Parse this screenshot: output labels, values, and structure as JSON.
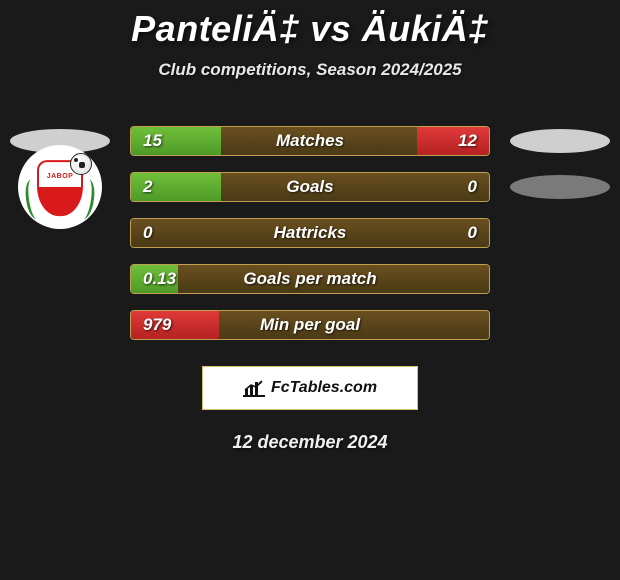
{
  "title": "PanteliÄ‡ vs ÄukiÄ‡",
  "subtitle": "Club competitions, Season 2024/2025",
  "date": "12 december 2024",
  "footer": {
    "brand": "FcTables.com"
  },
  "colors": {
    "bg": "#1a1a1a",
    "bar_bg_top": "#6a4f1f",
    "bar_bg_bot": "#4a3a15",
    "border": "#bfa050",
    "fill_green_top": "#6fbf3a",
    "fill_green_bot": "#4e9a28",
    "fill_red_top": "#e03a3a",
    "fill_red_bot": "#b52121",
    "blob": "#cfcfcf",
    "blob_dark": "#7a7a7a",
    "text": "#ffffff"
  },
  "stats": [
    {
      "label": "Matches",
      "left_text": "15",
      "right_text": "12",
      "left_val": 15,
      "right_val": 12,
      "scale": 30,
      "left_color": "green",
      "right_color": "red",
      "left_badge": "blob_light",
      "right_badge": "blob_light"
    },
    {
      "label": "Goals",
      "left_text": "2",
      "right_text": "0",
      "left_val": 2,
      "right_val": 0,
      "scale": 4,
      "left_color": "green",
      "right_color": "red",
      "left_badge": "crest",
      "right_badge": "blob_dark"
    },
    {
      "label": "Hattricks",
      "left_text": "0",
      "right_text": "0",
      "left_val": 0,
      "right_val": 0,
      "scale": 1,
      "left_color": "green",
      "right_color": "red",
      "left_badge": "none",
      "right_badge": "none"
    },
    {
      "label": "Goals per match",
      "left_text": "0.13",
      "right_text": "",
      "left_val": 0.13,
      "right_val": 0,
      "scale": 0.5,
      "left_color": "green",
      "right_color": "red",
      "left_badge": "none",
      "right_badge": "none"
    },
    {
      "label": "Min per goal",
      "left_text": "979",
      "right_text": "",
      "left_val": 979,
      "right_val": 0,
      "scale": 2000,
      "left_color": "red",
      "right_color": "green",
      "left_badge": "none",
      "right_badge": "none"
    }
  ]
}
